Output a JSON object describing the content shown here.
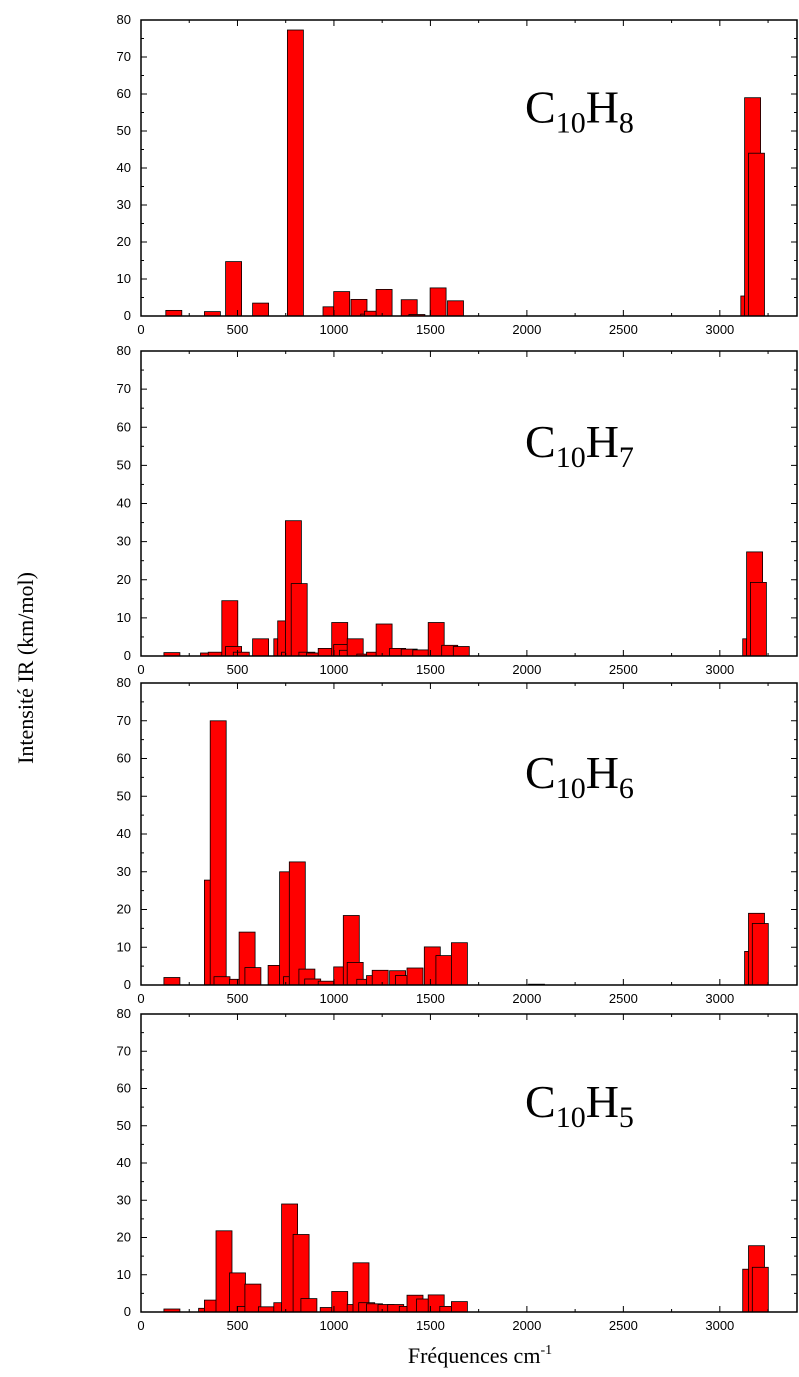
{
  "style": {
    "bar_color": "#ff0000",
    "bar_edge": "#000000"
  },
  "figure": {
    "ylabel": "Intensité IR (km/mol)",
    "xlabel_main": "Fréquences cm",
    "xlabel_sup": "-1"
  },
  "chart_data": [
    {
      "type": "bar",
      "label_main": "C",
      "label_sub1": "10",
      "label_mid": "H",
      "label_sub2": "8",
      "xlim": [
        0,
        3400
      ],
      "ylim": [
        0,
        80
      ],
      "xticks": [
        "0",
        "500",
        "1000",
        "1500",
        "2000",
        "2500",
        "3000"
      ],
      "yticks": [
        "0",
        "10",
        "20",
        "30",
        "40",
        "50",
        "60",
        "70",
        "80"
      ],
      "x": [
        170,
        370,
        480,
        620,
        800,
        985,
        1040,
        1130,
        1180,
        1200,
        1260,
        1390,
        1430,
        1540,
        1630,
        3150,
        3170,
        3190
      ],
      "values": [
        1.5,
        1.2,
        14.7,
        3.5,
        77.3,
        2.5,
        6.6,
        4.5,
        0.5,
        1.3,
        7.2,
        4.4,
        0.4,
        7.6,
        4.1,
        5.4,
        59,
        44
      ]
    },
    {
      "type": "bar",
      "label_main": "C",
      "label_sub1": "10",
      "label_mid": "H",
      "label_sub2": "7",
      "xlim": [
        0,
        3400
      ],
      "ylim": [
        0,
        80
      ],
      "xticks": [
        "0",
        "500",
        "1000",
        "1500",
        "2000",
        "2500",
        "3000"
      ],
      "yticks": [
        "0",
        "10",
        "20",
        "30",
        "40",
        "50",
        "60",
        "70",
        "80"
      ],
      "x": [
        160,
        350,
        390,
        460,
        480,
        520,
        620,
        730,
        750,
        770,
        790,
        820,
        860,
        900,
        960,
        1030,
        1040,
        1070,
        1110,
        1160,
        1210,
        1260,
        1330,
        1390,
        1450,
        1530,
        1600,
        1660,
        3160,
        3180,
        3200
      ],
      "values": [
        0.9,
        0.8,
        1.0,
        14.5,
        2.5,
        1.0,
        4.5,
        4.5,
        9.2,
        1.0,
        35.5,
        19.0,
        1.0,
        0.8,
        2.0,
        8.8,
        3.0,
        1.5,
        4.5,
        0.5,
        1.0,
        8.4,
        2.0,
        1.8,
        1.6,
        8.8,
        2.8,
        2.5,
        4.5,
        27.3,
        19.3
      ]
    },
    {
      "type": "bar",
      "label_main": "C",
      "label_sub1": "10",
      "label_mid": "H",
      "label_sub2": "6",
      "xlim": [
        0,
        3400
      ],
      "ylim": [
        0,
        80
      ],
      "xticks": [
        "0",
        "500",
        "1000",
        "1500",
        "2000",
        "2500",
        "3000"
      ],
      "yticks": [
        "0",
        "10",
        "20",
        "30",
        "40",
        "50",
        "60",
        "70",
        "80"
      ],
      "x": [
        160,
        370,
        400,
        420,
        500,
        550,
        580,
        700,
        760,
        780,
        810,
        860,
        890,
        960,
        1040,
        1090,
        1110,
        1160,
        1210,
        1240,
        1330,
        1360,
        1420,
        1510,
        1570,
        1650,
        2050,
        3170,
        3190,
        3210
      ],
      "values": [
        2.0,
        27.8,
        70.0,
        2.2,
        1.5,
        14.0,
        4.6,
        5.2,
        30.0,
        2.2,
        32.6,
        4.2,
        1.6,
        1.0,
        4.8,
        18.4,
        6.0,
        1.5,
        2.5,
        3.9,
        3.8,
        2.5,
        4.5,
        10.1,
        7.8,
        11.2,
        0.2,
        8.9,
        19.0,
        16.3
      ]
    },
    {
      "type": "bar",
      "label_main": "C",
      "label_sub1": "10",
      "label_mid": "H",
      "label_sub2": "5",
      "xlim": [
        0,
        3400
      ],
      "ylim": [
        0,
        80
      ],
      "xticks": [
        "0",
        "500",
        "1000",
        "1500",
        "2000",
        "2500",
        "3000"
      ],
      "yticks": [
        "0",
        "10",
        "20",
        "30",
        "40",
        "50",
        "60",
        "70",
        "80"
      ],
      "x": [
        160,
        340,
        370,
        430,
        500,
        540,
        580,
        650,
        730,
        770,
        830,
        870,
        970,
        1030,
        1110,
        1140,
        1170,
        1210,
        1270,
        1320,
        1380,
        1420,
        1470,
        1530,
        1590,
        1650,
        3160,
        3190,
        3210
      ],
      "values": [
        0.8,
        1.0,
        3.2,
        21.8,
        10.5,
        1.5,
        7.5,
        1.4,
        2.5,
        29.0,
        20.8,
        3.6,
        1.2,
        5.5,
        2.0,
        13.2,
        2.5,
        2.2,
        2.0,
        2.0,
        1.5,
        4.5,
        3.5,
        4.6,
        1.5,
        2.8,
        11.5,
        17.8,
        12.0
      ]
    }
  ]
}
